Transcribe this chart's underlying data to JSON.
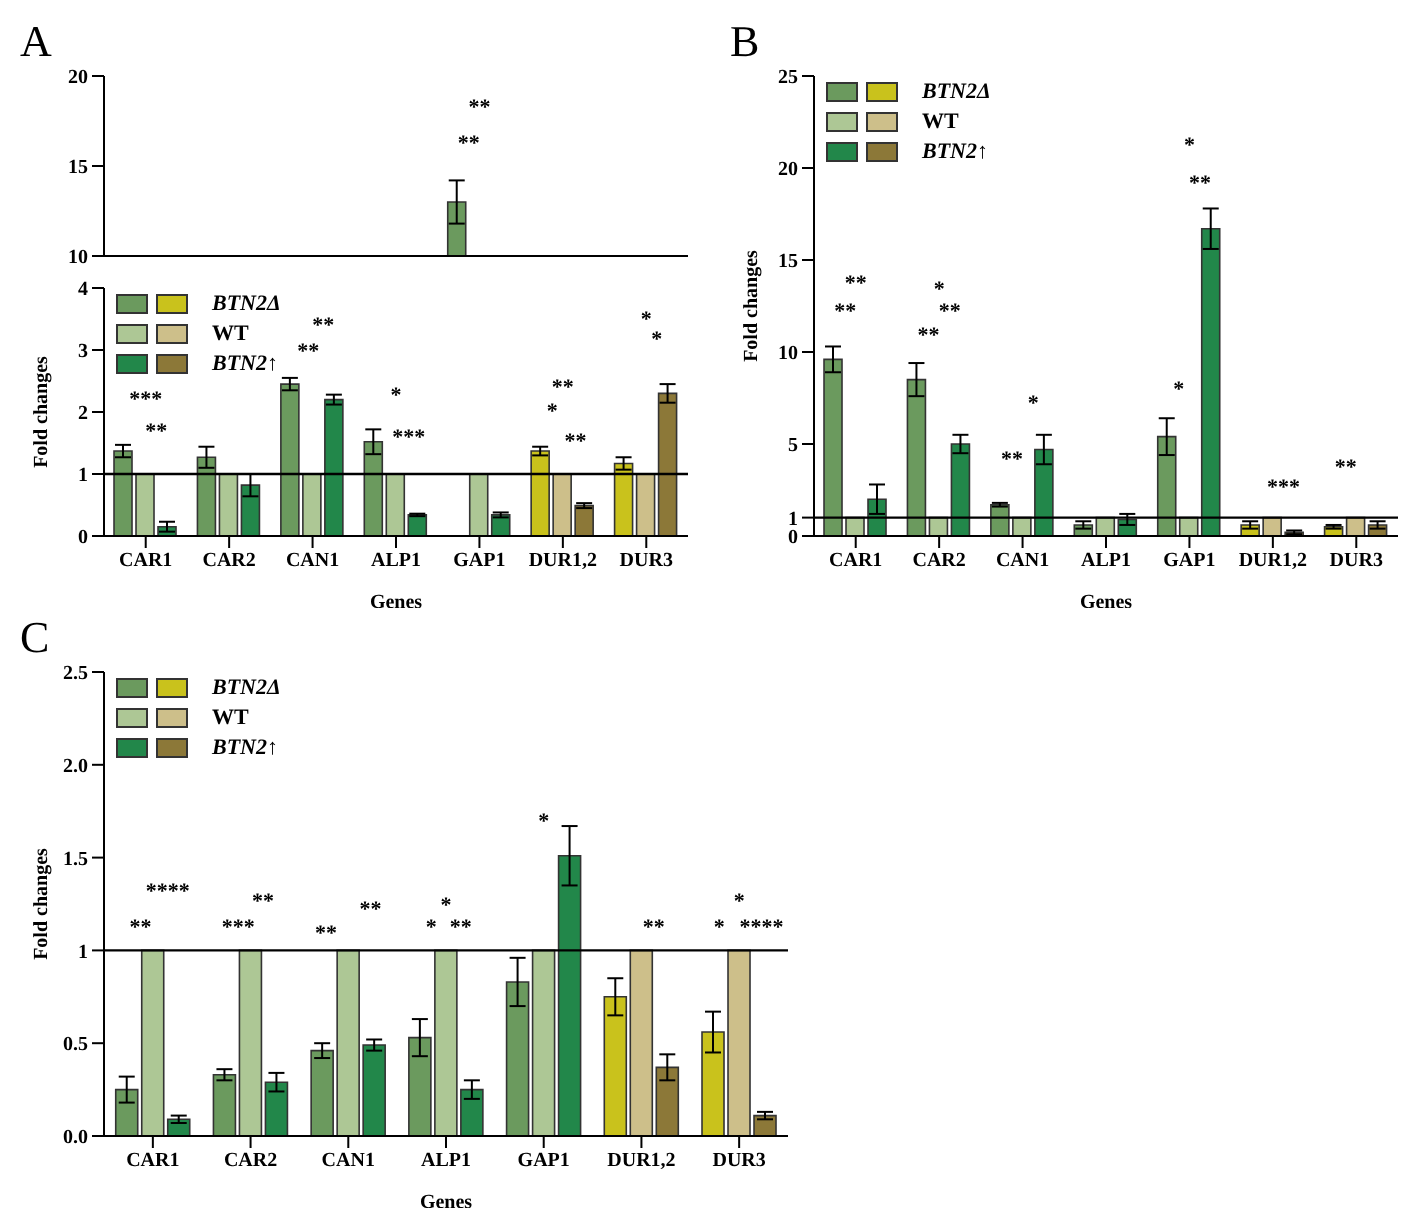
{
  "chart_data": [
    {
      "type": "bar",
      "title": "A",
      "categories": [
        null,
        null,
        null,
        null,
        null,
        null,
        null
      ],
      "series": [
        {
          "colors": [
            "#6b9a5e",
            "#6b9a5e",
            "#6b9a5e",
            "#6b9a5e",
            "#6b9a5e",
            "#c9c21c",
            "#c9c21c"
          ],
          "values": [
            null,
            null,
            null,
            null,
            13.0,
            null,
            null
          ],
          "errors": [
            null,
            null,
            null,
            null,
            1.2,
            null,
            null
          ]
        },
        {
          "colors": [
            "#adc795",
            "#adc795",
            "#adc795",
            "#adc795",
            "#adc795",
            "#cdbf8a",
            "#cdbf8a"
          ],
          "values": [
            null,
            null,
            null,
            null,
            null,
            null,
            null
          ]
        },
        {
          "colors": [
            "#22874a",
            "#22874a",
            "#22874a",
            "#22874a",
            "#22874a",
            "#8c7838",
            "#8c7838"
          ],
          "values": [
            null,
            null,
            null,
            null,
            null,
            null,
            null
          ]
        }
      ],
      "ylim": [
        10,
        20
      ],
      "yticks": [
        10,
        15,
        20
      ],
      "tick_labels": "y",
      "annotations": [
        "**",
        "**"
      ]
    },
    {
      "type": "bar",
      "xlabel": "Genes",
      "ylabel": "Fold changes",
      "categories": [
        "CAR1",
        "CAR2",
        "CAN1",
        "ALP1",
        "GAP1",
        "DUR1,2",
        "DUR3"
      ],
      "series": [
        {
          "name": "BTN2Δ",
          "colors": [
            "#6b9a5e",
            "#6b9a5e",
            "#6b9a5e",
            "#6b9a5e",
            "#6b9a5e",
            "#c9c21c",
            "#c9c21c"
          ],
          "values": [
            1.37,
            1.27,
            2.45,
            1.52,
            null,
            1.37,
            1.17
          ],
          "errors": [
            0.1,
            0.17,
            0.1,
            0.2,
            null,
            0.07,
            0.1
          ]
        },
        {
          "name": "WT",
          "colors": [
            "#adc795",
            "#adc795",
            "#adc795",
            "#adc795",
            "#adc795",
            "#cdbf8a",
            "#cdbf8a"
          ],
          "values": [
            1,
            1,
            1,
            1,
            1,
            1,
            1
          ]
        },
        {
          "name": "BTN2↑",
          "colors": [
            "#22874a",
            "#22874a",
            "#22874a",
            "#22874a",
            "#22874a",
            "#8c7838",
            "#8c7838"
          ],
          "values": [
            0.15,
            0.82,
            2.2,
            0.34,
            0.34,
            0.49,
            2.3
          ],
          "errors": [
            0.08,
            0.18,
            0.08,
            0.02,
            0.04,
            0.04,
            0.15
          ]
        }
      ],
      "ylim": [
        0,
        4
      ],
      "yticks": [
        0,
        1,
        2,
        3,
        4
      ],
      "legend": "top left",
      "ref_lines": [
        {
          "axis": "y",
          "value": 1,
          "color": "#000000"
        }
      ],
      "annotations": [
        "***",
        "**",
        "**",
        "**",
        "*",
        "***",
        "*",
        "**",
        "**",
        "*",
        "*"
      ]
    },
    {
      "type": "bar",
      "title": "B",
      "xlabel": "Genes",
      "ylabel": "Fold changes",
      "categories": [
        "CAR1",
        "CAR2",
        "CAN1",
        "ALP1",
        "GAP1",
        "DUR1,2",
        "DUR3"
      ],
      "series": [
        {
          "name": "BTN2Δ",
          "colors": [
            "#6b9a5e",
            "#6b9a5e",
            "#6b9a5e",
            "#6b9a5e",
            "#6b9a5e",
            "#c9c21c",
            "#c9c21c"
          ],
          "values": [
            9.6,
            8.5,
            1.7,
            0.6,
            5.4,
            0.6,
            0.5
          ],
          "errors": [
            0.7,
            0.9,
            0.1,
            0.2,
            1.0,
            0.2,
            0.1
          ]
        },
        {
          "name": "WT",
          "colors": [
            "#adc795",
            "#adc795",
            "#adc795",
            "#adc795",
            "#adc795",
            "#cdbf8a",
            "#cdbf8a"
          ],
          "values": [
            1,
            1,
            1,
            1,
            1,
            1,
            1
          ]
        },
        {
          "name": "BTN2↑",
          "colors": [
            "#22874a",
            "#22874a",
            "#22874a",
            "#22874a",
            "#22874a",
            "#8c7838",
            "#8c7838"
          ],
          "values": [
            2.0,
            5.0,
            4.7,
            0.9,
            16.7,
            0.2,
            0.6
          ],
          "errors": [
            0.8,
            0.5,
            0.8,
            0.3,
            1.1,
            0.1,
            0.2
          ]
        }
      ],
      "ylim": [
        0,
        25
      ],
      "yticks": [
        0,
        1,
        5,
        10,
        15,
        20,
        25
      ],
      "legend": "top left",
      "ref_lines": [
        {
          "axis": "y",
          "value": 1,
          "color": "#000000"
        }
      ],
      "annotations": [
        "**",
        "**",
        "**",
        "**",
        "*",
        "**",
        "*",
        "*",
        "**",
        "*",
        "***",
        "**"
      ]
    },
    {
      "type": "bar",
      "title": "C",
      "xlabel": "Genes",
      "ylabel": "Fold changes",
      "categories": [
        "CAR1",
        "CAR2",
        "CAN1",
        "ALP1",
        "GAP1",
        "DUR1,2",
        "DUR3"
      ],
      "series": [
        {
          "name": "BTN2Δ",
          "colors": [
            "#6b9a5e",
            "#6b9a5e",
            "#6b9a5e",
            "#6b9a5e",
            "#6b9a5e",
            "#c9c21c",
            "#c9c21c"
          ],
          "values": [
            0.25,
            0.33,
            0.46,
            0.53,
            0.83,
            0.75,
            0.56
          ],
          "errors": [
            0.07,
            0.03,
            0.04,
            0.1,
            0.13,
            0.1,
            0.11
          ]
        },
        {
          "name": "WT",
          "colors": [
            "#adc795",
            "#adc795",
            "#adc795",
            "#adc795",
            "#adc795",
            "#cdbf8a",
            "#cdbf8a"
          ],
          "values": [
            1,
            1,
            1,
            1,
            1,
            1,
            1
          ]
        },
        {
          "name": "BTN2↑",
          "colors": [
            "#22874a",
            "#22874a",
            "#22874a",
            "#22874a",
            "#22874a",
            "#8c7838",
            "#8c7838"
          ],
          "values": [
            0.09,
            0.29,
            0.49,
            0.25,
            1.51,
            0.37,
            0.11
          ],
          "errors": [
            0.02,
            0.05,
            0.03,
            0.05,
            0.16,
            0.07,
            0.02
          ]
        }
      ],
      "ylim": [
        0,
        2.5
      ],
      "yticks": [
        {
          "value": 0,
          "label": "0.0"
        },
        {
          "value": 0.5,
          "label": "0.5"
        },
        1,
        1.5,
        {
          "value": 2,
          "label": "2.0"
        },
        {
          "value": 2.5,
          "label": "2.5"
        }
      ],
      "legend": "top left",
      "ref_lines": [
        {
          "axis": "y",
          "value": 1,
          "color": "#000000"
        }
      ],
      "annotations": [
        "**",
        "****",
        "***",
        "**",
        "**",
        "**",
        "*",
        "**",
        "*",
        "*",
        "**",
        "*",
        "****",
        "*"
      ]
    }
  ]
}
